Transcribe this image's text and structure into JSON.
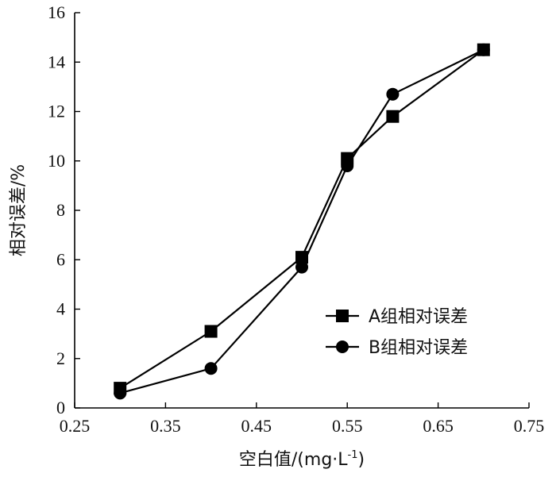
{
  "chart_data": {
    "type": "line",
    "xlabel": "空白值/(mg·L",
    "xlabel_sup": "-1",
    "xlabel_close": ")",
    "ylabel": "相对误差/%",
    "xlim": [
      0.25,
      0.75
    ],
    "ylim": [
      0,
      16
    ],
    "x_ticks": [
      "0.25",
      "0.35",
      "0.45",
      "0.55",
      "0.65",
      "0.75"
    ],
    "y_ticks": [
      "0",
      "2",
      "4",
      "6",
      "8",
      "10",
      "12",
      "14",
      "16"
    ],
    "grid": false,
    "legend_position": "bottom-right",
    "series": [
      {
        "name": "A组相对误差",
        "marker": "square",
        "color": "#000000",
        "x": [
          0.3,
          0.4,
          0.5,
          0.55,
          0.6,
          0.7
        ],
        "y": [
          0.8,
          3.1,
          6.1,
          10.1,
          11.8,
          14.5
        ]
      },
      {
        "name": "B组相对误差",
        "marker": "circle",
        "color": "#000000",
        "x": [
          0.3,
          0.4,
          0.5,
          0.55,
          0.6,
          0.7
        ],
        "y": [
          0.6,
          1.6,
          5.7,
          9.8,
          12.7,
          14.5
        ]
      }
    ]
  }
}
